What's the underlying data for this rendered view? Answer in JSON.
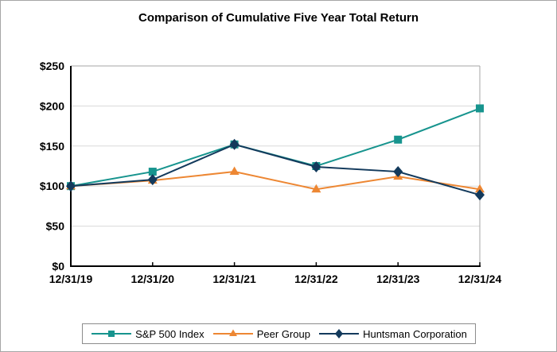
{
  "chart_data": {
    "type": "line",
    "title": "Comparison of Cumulative Five Year Total Return",
    "categories": [
      "12/31/19",
      "12/31/20",
      "12/31/21",
      "12/31/22",
      "12/31/23",
      "12/31/24"
    ],
    "series": [
      {
        "name": "S&P 500 Index",
        "color": "#17948E",
        "marker": "square",
        "values": [
          100,
          118,
          152,
          125,
          158,
          197
        ]
      },
      {
        "name": "Peer Group",
        "color": "#ED8733",
        "marker": "triangle",
        "values": [
          100,
          107,
          118,
          96,
          112,
          96
        ]
      },
      {
        "name": "Huntsman Corporation",
        "color": "#133A5C",
        "marker": "diamond",
        "values": [
          100,
          108,
          152,
          124,
          118,
          89
        ]
      }
    ],
    "ylim": [
      0,
      250
    ],
    "yticks": [
      0,
      50,
      100,
      150,
      200,
      250
    ],
    "ytick_prefix": "$",
    "grid": true,
    "legend_position": "bottom",
    "axis_color": "#000000",
    "gridline_color": "#D9D9D9",
    "frame_color": "#A6A6A6"
  }
}
